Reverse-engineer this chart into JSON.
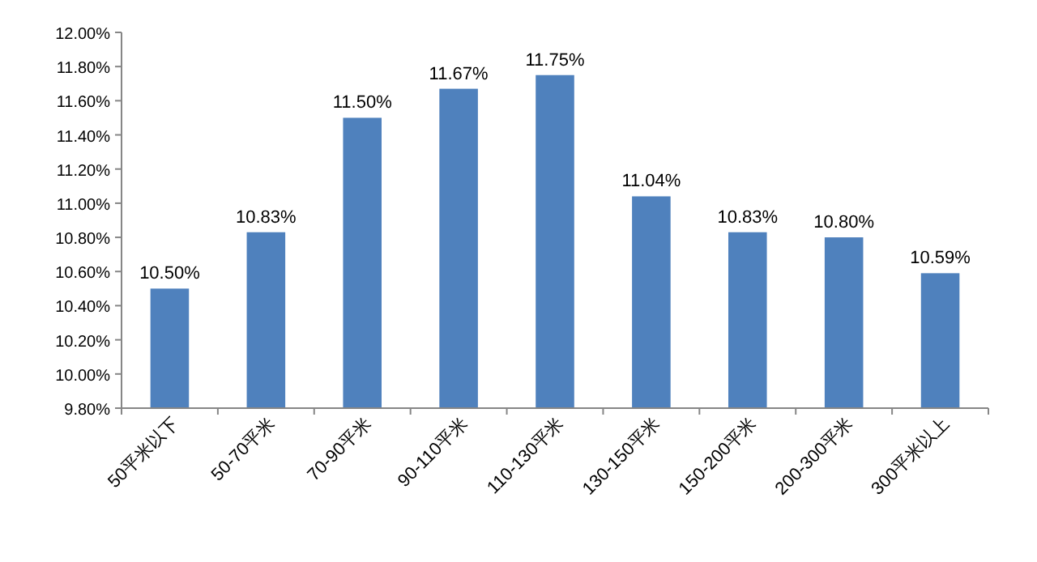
{
  "chart_data": {
    "type": "bar",
    "categories": [
      "50平米以下",
      "50-70平米",
      "70-90平米",
      "90-110平米",
      "110-130平米",
      "130-150平米",
      "150-200平米",
      "200-300平米",
      "300平米以上"
    ],
    "values": [
      10.5,
      10.83,
      11.5,
      11.67,
      11.75,
      11.04,
      10.83,
      10.8,
      10.59
    ],
    "value_labels": [
      "10.50%",
      "10.83%",
      "11.50%",
      "11.67%",
      "11.75%",
      "11.04%",
      "10.83%",
      "10.80%",
      "10.59%"
    ],
    "color": "#4f81bd",
    "ylim": [
      9.8,
      12.0
    ],
    "yticks": [
      {
        "value": 9.8,
        "label": "9.80%"
      },
      {
        "value": 10.0,
        "label": "10.00%"
      },
      {
        "value": 10.2,
        "label": "10.20%"
      },
      {
        "value": 10.4,
        "label": "10.40%"
      },
      {
        "value": 10.6,
        "label": "10.60%"
      },
      {
        "value": 10.8,
        "label": "10.80%"
      },
      {
        "value": 11.0,
        "label": "11.00%"
      },
      {
        "value": 11.2,
        "label": "11.20%"
      },
      {
        "value": 11.4,
        "label": "11.40%"
      },
      {
        "value": 11.6,
        "label": "11.60%"
      },
      {
        "value": 11.8,
        "label": "11.80%"
      },
      {
        "value": 12.0,
        "label": "12.00%"
      }
    ],
    "grid": false
  }
}
